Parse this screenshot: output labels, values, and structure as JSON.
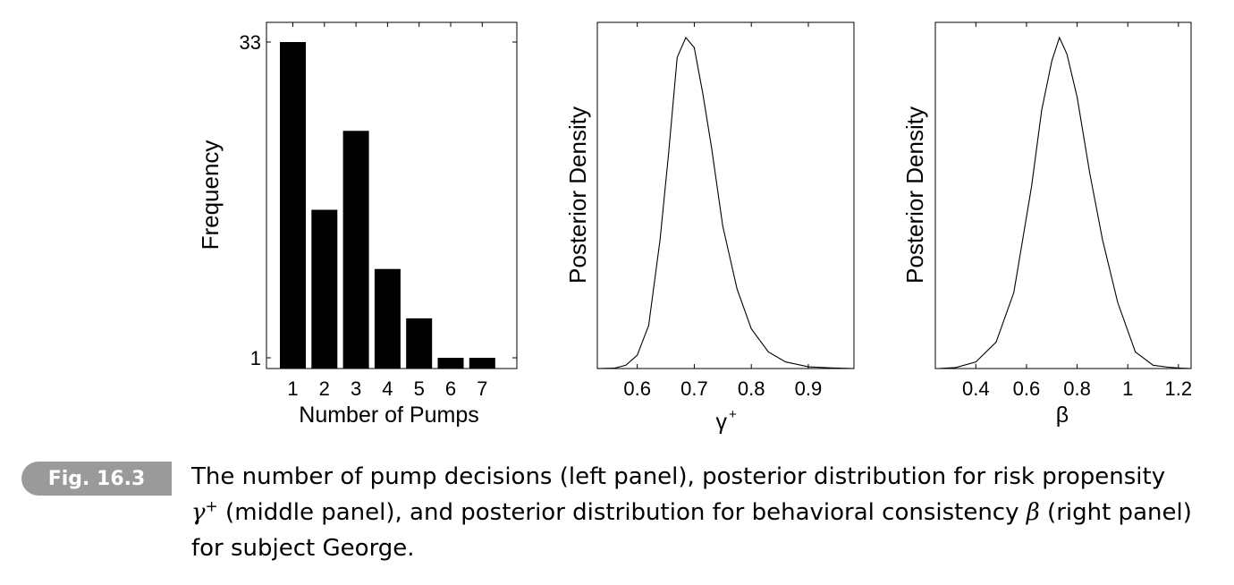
{
  "chart_data": [
    {
      "type": "bar",
      "categories": [
        "1",
        "2",
        "3",
        "4",
        "5",
        "6",
        "7"
      ],
      "values": [
        33,
        16,
        24,
        10,
        5,
        1,
        1
      ],
      "xlabel": "Number of Pumps",
      "ylabel": "Frequency",
      "ylim": [
        0,
        33
      ],
      "yticks": [
        "1",
        "33"
      ],
      "grid": false
    },
    {
      "type": "line",
      "x": [
        0.53,
        0.56,
        0.58,
        0.6,
        0.62,
        0.64,
        0.655,
        0.67,
        0.685,
        0.7,
        0.715,
        0.73,
        0.75,
        0.775,
        0.8,
        0.83,
        0.86,
        0.9,
        0.94,
        0.98
      ],
      "y": [
        0.0,
        0.001,
        0.01,
        0.04,
        0.13,
        0.39,
        0.65,
        0.94,
        1.0,
        0.97,
        0.83,
        0.67,
        0.43,
        0.24,
        0.12,
        0.05,
        0.02,
        0.005,
        0.002,
        0.0
      ],
      "xticks": [
        "0.6",
        "0.7",
        "0.8",
        "0.9"
      ],
      "xlim": [
        0.53,
        0.98
      ],
      "xlabel": "γ",
      "xlabel_sup": "+",
      "ylabel": "Posterior Density",
      "grid": false
    },
    {
      "type": "line",
      "x": [
        0.25,
        0.32,
        0.4,
        0.48,
        0.55,
        0.62,
        0.66,
        0.7,
        0.73,
        0.76,
        0.8,
        0.85,
        0.9,
        0.96,
        1.03,
        1.1,
        1.16,
        1.21,
        1.25
      ],
      "y": [
        0.0,
        0.003,
        0.02,
        0.08,
        0.23,
        0.55,
        0.78,
        0.93,
        1.0,
        0.95,
        0.82,
        0.59,
        0.39,
        0.2,
        0.05,
        0.01,
        0.004,
        0.001,
        0.0
      ],
      "xticks": [
        "0.4",
        "0.6",
        "0.8",
        "1",
        "1.2"
      ],
      "xlim": [
        0.24,
        1.25
      ],
      "xlabel": "β",
      "ylabel": "Posterior Density",
      "grid": false
    }
  ],
  "figure": {
    "badge": "Fig. 16.3",
    "caption_part1": "The number of pump decisions (left panel), posterior distribution for risk propensity",
    "caption_gamma": "γ",
    "caption_gamma_sup": "+",
    "caption_part2": " (middle panel), and posterior distribution for behavioral consistency ",
    "caption_beta": "β",
    "caption_part3": " (right panel) for subject George."
  }
}
